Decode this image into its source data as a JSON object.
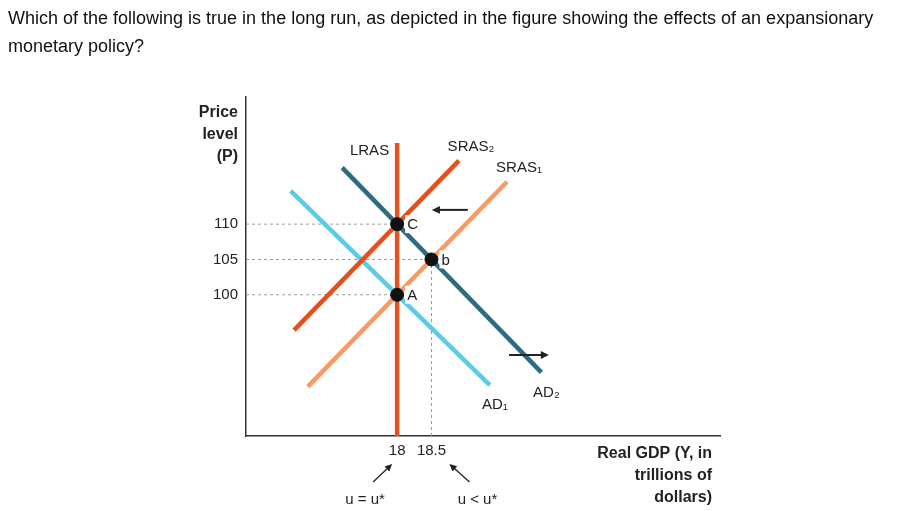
{
  "question": "Which of the following is true in the long run, as depicted in the figure showing the effects of an expansionary monetary policy?",
  "chart_data": {
    "type": "line",
    "xlabel": "Real GDP (Y, in\ntrillions of\ndollars)",
    "ylabel": "Price\nlevel\n(P)",
    "xlim": [
      15.8,
      22.7
    ],
    "ylim": [
      80,
      128
    ],
    "xticks": [
      18,
      18.5
    ],
    "yticks": [
      100,
      105,
      110
    ],
    "grid": false,
    "series": [
      {
        "name": "LRAS",
        "color": "#e4531f",
        "x": [
          18,
          18
        ],
        "values": [
          80,
          121.5
        ]
      },
      {
        "name": "SRAS₂",
        "color": "#e64f1c",
        "x": [
          16.5,
          18.9
        ],
        "values": [
          95,
          119
        ]
      },
      {
        "name": "SRAS₁",
        "color": "#f89a63",
        "x": [
          16.7,
          19.6
        ],
        "values": [
          87,
          116
        ]
      },
      {
        "name": "AD₂",
        "color": "#2c6b80",
        "x": [
          17.2,
          20.1
        ],
        "values": [
          118,
          89
        ]
      },
      {
        "name": "AD₁",
        "color": "#5ccbe8",
        "x": [
          16.45,
          19.35
        ],
        "values": [
          114.7,
          87.2
        ]
      }
    ],
    "points": [
      {
        "label": "C",
        "x": 18,
        "y": 110
      },
      {
        "label": "b",
        "x": 18.5,
        "y": 105
      },
      {
        "label": "A",
        "x": 18,
        "y": 100
      }
    ],
    "annotations": [
      {
        "x": 18,
        "text": "u = u*"
      },
      {
        "x": 18.5,
        "text": "u < u*"
      }
    ]
  }
}
